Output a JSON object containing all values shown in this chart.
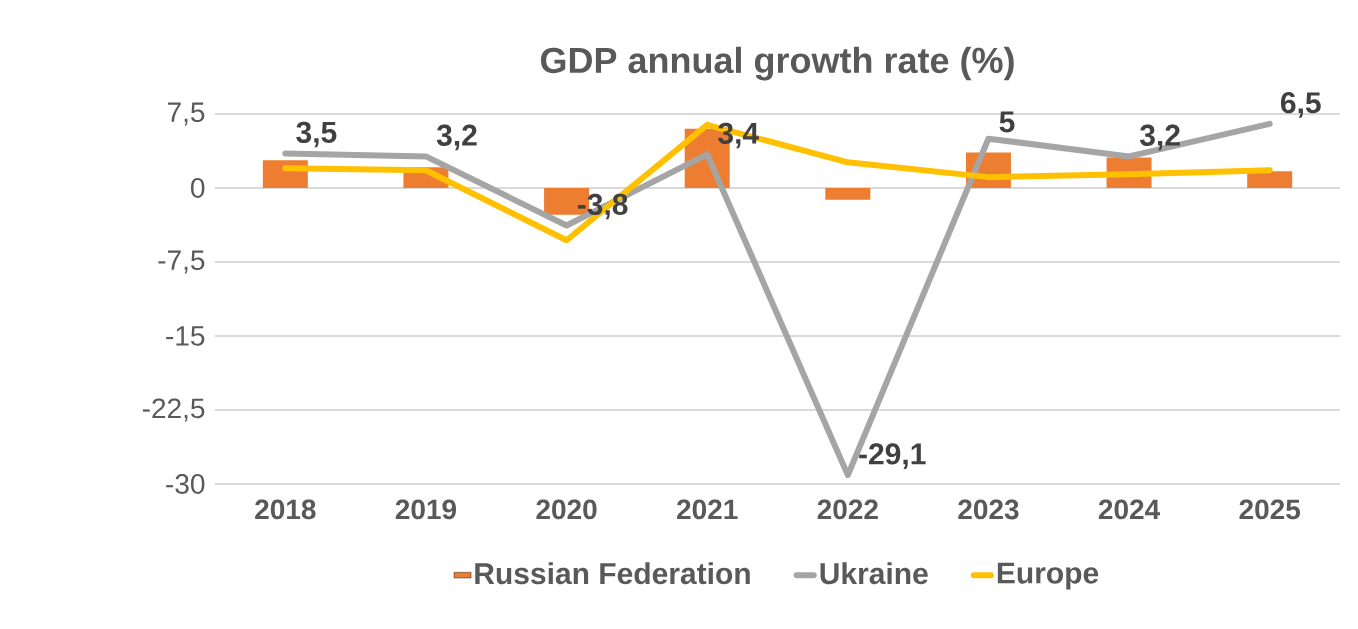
{
  "chart_data": {
    "type": "bar",
    "title": "GDP annual growth rate (%)",
    "categories": [
      "2018",
      "2019",
      "2020",
      "2021",
      "2022",
      "2023",
      "2024",
      "2025"
    ],
    "series": [
      {
        "name": "Russian Federation",
        "color": "#ed7d31",
        "values": [
          2.8,
          2.1,
          -2.7,
          6.0,
          -1.2,
          3.6,
          3.1,
          1.7
        ]
      },
      {
        "name": "Ukraine",
        "type": "line",
        "color": "#a5a5a5",
        "values": [
          3.5,
          3.2,
          -3.8,
          3.4,
          -29.1,
          5,
          3.2,
          6.5
        ],
        "value_labels": [
          "3,5",
          "3,2",
          "-3,8",
          "3,4",
          "-29,1",
          "5",
          "3,2",
          "6,5"
        ]
      },
      {
        "name": "Europe",
        "type": "line",
        "color": "#ffc000",
        "values": [
          2.0,
          1.8,
          -5.3,
          6.4,
          2.6,
          1.1,
          1.4,
          1.8
        ]
      }
    ],
    "ylim": [
      -30,
      7.5
    ],
    "yticks": [
      {
        "value": -30,
        "label": "-30"
      },
      {
        "value": -22.5,
        "label": "-22,5"
      },
      {
        "value": -15,
        "label": "-15"
      },
      {
        "value": -7.5,
        "label": "-7,5"
      },
      {
        "value": 0,
        "label": "0"
      },
      {
        "value": 7.5,
        "label": "7,5"
      }
    ],
    "grid": "y",
    "legend": "bottom",
    "marker": "none",
    "line_style": "solid"
  }
}
